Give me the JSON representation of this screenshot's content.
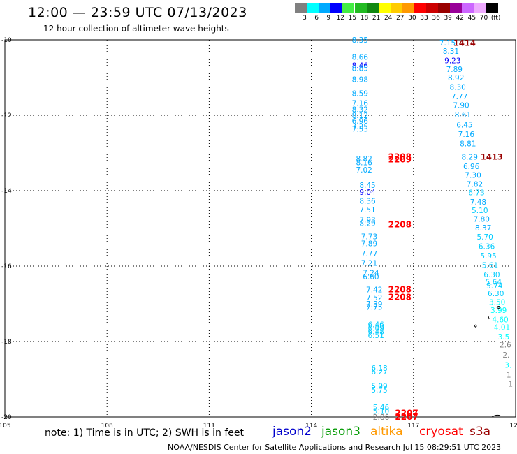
{
  "header": {
    "title": "12:00 — 23:59 UTC 07/13/2023",
    "subtitle": "12 hour collection of altimeter wave heights"
  },
  "colorbar": {
    "colors": [
      "#808080",
      "#00ffff",
      "#00aaff",
      "#0000ff",
      "#44ee44",
      "#22bb22",
      "#118811",
      "#ffff00",
      "#ffcc00",
      "#ff9900",
      "#ff0000",
      "#cc0000",
      "#990000",
      "#990099",
      "#cc66ff",
      "#eeaaff",
      "#000000"
    ],
    "labels": [
      "3",
      "6",
      "9",
      "12",
      "15",
      "18",
      "21",
      "24",
      "27",
      "30",
      "33",
      "36",
      "39",
      "42",
      "45",
      "70",
      "(ft)"
    ]
  },
  "footer": {
    "note": "note:  1) Time is in UTC;  2) SWH is in feet",
    "satellites": [
      {
        "name": "jason2",
        "color": "#0000cc"
      },
      {
        "name": "jason3",
        "color": "#009900"
      },
      {
        "name": "altika",
        "color": "#ff9900"
      },
      {
        "name": "cryosat",
        "color": "#ff0000"
      },
      {
        "name": "s3a",
        "color": "#990000"
      }
    ],
    "credit": "NOAA/NESDIS Center for Satellite Applications and Research    Jul 15 08:29:51 UTC 2023"
  },
  "chart_data": {
    "type": "scatter",
    "title": "12:00 — 23:59 UTC 07/13/2023",
    "xlim": [
      105,
      120
    ],
    "ylim": [
      -20,
      -10
    ],
    "x_ticks": [
      "105",
      "108",
      "111",
      "114",
      "117",
      "120"
    ],
    "y_ticks": [
      "-10",
      "-12",
      "-14",
      "-16",
      "-18",
      "-20"
    ],
    "grid": true,
    "track_a": [
      {
        "x": 115.43,
        "y": -10.0,
        "t": "8.35",
        "c": "#00aaff"
      },
      {
        "x": 115.43,
        "y": -10.45,
        "t": "8.66",
        "c": "#00aaff"
      },
      {
        "x": 115.43,
        "y": -10.68,
        "t": "8.46",
        "c": "#0000ff"
      },
      {
        "x": 115.43,
        "y": -10.75,
        "t": "8.85",
        "c": "#00aaff"
      },
      {
        "x": 115.43,
        "y": -11.05,
        "t": "8.98",
        "c": "#00aaff"
      },
      {
        "x": 115.43,
        "y": -11.42,
        "t": "8.59",
        "c": "#00aaff"
      },
      {
        "x": 115.43,
        "y": -11.68,
        "t": "7.16",
        "c": "#00aaff"
      },
      {
        "x": 115.43,
        "y": -11.84,
        "t": "8.32",
        "c": "#00aaff"
      },
      {
        "x": 115.43,
        "y": -12.0,
        "t": "8.12",
        "c": "#00aaff"
      },
      {
        "x": 115.43,
        "y": -12.15,
        "t": "6.96",
        "c": "#00aaff"
      },
      {
        "x": 115.43,
        "y": -12.3,
        "t": "7.35",
        "c": "#00aaff"
      },
      {
        "x": 115.43,
        "y": -12.36,
        "t": "7.53",
        "c": "#00aaff"
      },
      {
        "x": 115.55,
        "y": -13.15,
        "t": "8.82",
        "c": "#00aaff"
      },
      {
        "x": 115.55,
        "y": -13.25,
        "t": "8.16",
        "c": "#00aaff"
      },
      {
        "x": 115.55,
        "y": -13.44,
        "t": "7.02",
        "c": "#00aaff"
      },
      {
        "x": 115.65,
        "y": -13.85,
        "t": "8.45",
        "c": "#00aaff"
      },
      {
        "x": 115.65,
        "y": -14.04,
        "t": "9.04",
        "c": "#0000ff"
      },
      {
        "x": 115.65,
        "y": -14.27,
        "t": "8.36",
        "c": "#00aaff"
      },
      {
        "x": 115.65,
        "y": -14.5,
        "t": "7.51",
        "c": "#00aaff"
      },
      {
        "x": 115.65,
        "y": -14.77,
        "t": "7.93",
        "c": "#00aaff"
      },
      {
        "x": 115.65,
        "y": -14.86,
        "t": "8.29",
        "c": "#00aaff"
      },
      {
        "x": 115.7,
        "y": -15.21,
        "t": "7.73",
        "c": "#00aaff"
      },
      {
        "x": 115.7,
        "y": -15.4,
        "t": "7.89",
        "c": "#00aaff"
      },
      {
        "x": 115.7,
        "y": -15.67,
        "t": "7.77",
        "c": "#00aaff"
      },
      {
        "x": 115.7,
        "y": -15.92,
        "t": "7.21",
        "c": "#00aaff"
      },
      {
        "x": 115.75,
        "y": -16.18,
        "t": "7.24",
        "c": "#00aaff"
      },
      {
        "x": 115.75,
        "y": -16.28,
        "t": "6.60",
        "c": "#00aaff"
      },
      {
        "x": 115.85,
        "y": -16.62,
        "t": "7.42",
        "c": "#00aaff"
      },
      {
        "x": 115.85,
        "y": -16.83,
        "t": "7.52",
        "c": "#00aaff"
      },
      {
        "x": 115.85,
        "y": -17.0,
        "t": "7.39",
        "c": "#00aaff"
      },
      {
        "x": 115.85,
        "y": -17.08,
        "t": "7.75",
        "c": "#00aaff"
      },
      {
        "x": 115.9,
        "y": -17.55,
        "t": "6.46",
        "c": "#00ccff"
      },
      {
        "x": 115.9,
        "y": -17.64,
        "t": "6.09",
        "c": "#00ccff"
      },
      {
        "x": 115.9,
        "y": -17.73,
        "t": "6.48",
        "c": "#00ccff"
      },
      {
        "x": 115.9,
        "y": -17.83,
        "t": "6.51",
        "c": "#00ccff"
      },
      {
        "x": 116.0,
        "y": -18.7,
        "t": "6.18",
        "c": "#00ccff"
      },
      {
        "x": 116.0,
        "y": -18.8,
        "t": "6.27",
        "c": "#00ccff"
      },
      {
        "x": 116.0,
        "y": -19.18,
        "t": "5.99",
        "c": "#00ccff"
      },
      {
        "x": 116.0,
        "y": -19.28,
        "t": "5.75",
        "c": "#00ccff"
      },
      {
        "x": 116.05,
        "y": -19.74,
        "t": "5.46",
        "c": "#00ccff"
      },
      {
        "x": 116.05,
        "y": -19.84,
        "t": "5.10",
        "c": "#00ccff"
      },
      {
        "x": 116.05,
        "y": -20.0,
        "t": "2.86",
        "c": "#808080"
      }
    ],
    "track_a_cryosat": [
      {
        "x": 116.6,
        "y": -13.1,
        "t": "2208",
        "c": "#ff0000"
      },
      {
        "x": 116.6,
        "y": -13.18,
        "t": "2209",
        "c": "#ff0000"
      },
      {
        "x": 116.6,
        "y": -14.9,
        "t": "2208",
        "c": "#ff0000"
      },
      {
        "x": 116.6,
        "y": -16.62,
        "t": "2208",
        "c": "#ff0000"
      },
      {
        "x": 116.6,
        "y": -16.82,
        "t": "2208",
        "c": "#ff0000"
      },
      {
        "x": 116.8,
        "y": -19.9,
        "t": "2207",
        "c": "#ff0000"
      },
      {
        "x": 116.8,
        "y": -20.0,
        "t": "2207",
        "c": "#ff0000"
      }
    ],
    "track_b": [
      {
        "x": 118.0,
        "y": -10.07,
        "t": "7.15",
        "c": "#00aaff"
      },
      {
        "x": 118.1,
        "y": -10.3,
        "t": "8.31",
        "c": "#00aaff"
      },
      {
        "x": 118.15,
        "y": -10.55,
        "t": "9.23",
        "c": "#0000ff"
      },
      {
        "x": 118.2,
        "y": -10.78,
        "t": "7.89",
        "c": "#00aaff"
      },
      {
        "x": 118.25,
        "y": -11.0,
        "t": "8.92",
        "c": "#00aaff"
      },
      {
        "x": 118.3,
        "y": -11.25,
        "t": "8.30",
        "c": "#00aaff"
      },
      {
        "x": 118.35,
        "y": -11.5,
        "t": "7.77",
        "c": "#00aaff"
      },
      {
        "x": 118.4,
        "y": -11.73,
        "t": "7.90",
        "c": "#00aaff"
      },
      {
        "x": 118.45,
        "y": -11.98,
        "t": "8.61",
        "c": "#00aaff"
      },
      {
        "x": 118.5,
        "y": -12.25,
        "t": "6.45",
        "c": "#00aaff"
      },
      {
        "x": 118.55,
        "y": -12.5,
        "t": "7.16",
        "c": "#00aaff"
      },
      {
        "x": 118.6,
        "y": -12.75,
        "t": "8.81",
        "c": "#00aaff"
      },
      {
        "x": 118.65,
        "y": -13.1,
        "t": "8.29",
        "c": "#00aaff"
      },
      {
        "x": 118.7,
        "y": -13.35,
        "t": "6.96",
        "c": "#00aaff"
      },
      {
        "x": 118.75,
        "y": -13.58,
        "t": "7.30",
        "c": "#00aaff"
      },
      {
        "x": 118.8,
        "y": -13.82,
        "t": "7.82",
        "c": "#00aaff"
      },
      {
        "x": 118.85,
        "y": -14.05,
        "t": "6.73",
        "c": "#00ccff"
      },
      {
        "x": 118.9,
        "y": -14.3,
        "t": "7.48",
        "c": "#00aaff"
      },
      {
        "x": 118.95,
        "y": -14.52,
        "t": "5.10",
        "c": "#00ccff"
      },
      {
        "x": 119.0,
        "y": -14.75,
        "t": "7.80",
        "c": "#00aaff"
      },
      {
        "x": 119.05,
        "y": -14.98,
        "t": "8.37",
        "c": "#00aaff"
      },
      {
        "x": 119.1,
        "y": -15.22,
        "t": "5.70",
        "c": "#00ccff"
      },
      {
        "x": 119.15,
        "y": -15.47,
        "t": "6.36",
        "c": "#00ccff"
      },
      {
        "x": 119.2,
        "y": -15.72,
        "t": "5.95",
        "c": "#00ccff"
      },
      {
        "x": 119.25,
        "y": -15.97,
        "t": "5.61",
        "c": "#00ccff"
      },
      {
        "x": 119.3,
        "y": -16.22,
        "t": "6.30",
        "c": "#00ccff"
      },
      {
        "x": 119.35,
        "y": -16.42,
        "t": "5.64",
        "c": "#00ccff"
      },
      {
        "x": 119.38,
        "y": -16.52,
        "t": "5.74",
        "c": "#00ccff"
      },
      {
        "x": 119.42,
        "y": -16.72,
        "t": "6.30",
        "c": "#00ccff"
      },
      {
        "x": 119.46,
        "y": -16.95,
        "t": "3.50",
        "c": "#00ffff"
      },
      {
        "x": 119.5,
        "y": -17.17,
        "t": "3.99",
        "c": "#00ffff"
      },
      {
        "x": 119.55,
        "y": -17.42,
        "t": "4.60",
        "c": "#00ffff"
      },
      {
        "x": 119.6,
        "y": -17.62,
        "t": "4.01",
        "c": "#00ffff"
      },
      {
        "x": 119.65,
        "y": -17.87,
        "t": "3.5",
        "c": "#00ffff"
      },
      {
        "x": 119.7,
        "y": -18.08,
        "t": "2.6",
        "c": "#808080"
      },
      {
        "x": 119.72,
        "y": -18.35,
        "t": "2.",
        "c": "#808080"
      },
      {
        "x": 119.78,
        "y": -18.62,
        "t": "3.",
        "c": "#00ffff"
      },
      {
        "x": 119.8,
        "y": -18.88,
        "t": "1",
        "c": "#808080"
      },
      {
        "x": 119.85,
        "y": -19.12,
        "t": "1",
        "c": "#808080"
      }
    ],
    "track_b_s3a": [
      {
        "x": 118.5,
        "y": -10.08,
        "t": "1414",
        "c": "#990000"
      },
      {
        "x": 119.3,
        "y": -13.1,
        "t": "1413",
        "c": "#990000"
      }
    ]
  }
}
